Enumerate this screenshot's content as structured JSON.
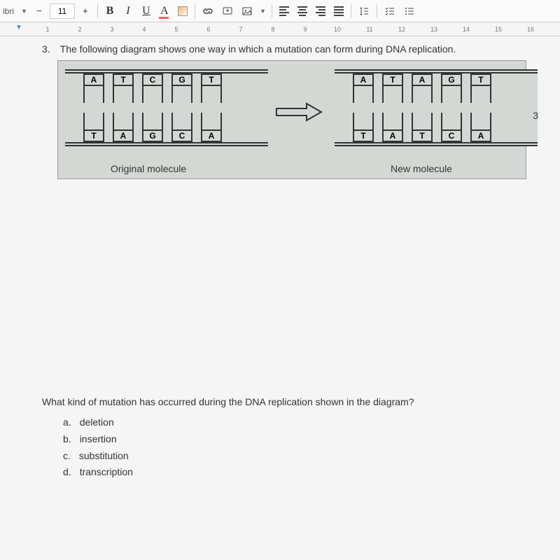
{
  "toolbar": {
    "font_hint": "ibri",
    "font_size": "11",
    "bold": "B",
    "italic": "I",
    "underline": "U",
    "font_color": "A"
  },
  "ruler": {
    "marks": [
      1,
      2,
      3,
      4,
      5,
      6,
      7,
      8,
      9,
      10,
      11,
      12,
      13,
      14,
      15,
      16
    ]
  },
  "question": {
    "number": "3.",
    "text": "The following diagram shows one way in which a mutation can form during DNA replication."
  },
  "diagram": {
    "original": {
      "top": [
        "A",
        "T",
        "C",
        "G",
        "T"
      ],
      "bottom": [
        "T",
        "A",
        "G",
        "C",
        "A"
      ],
      "label": "Original molecule"
    },
    "new": {
      "top": [
        "A",
        "T",
        "A",
        "G",
        "T"
      ],
      "bottom": [
        "T",
        "A",
        "T",
        "C",
        "A"
      ],
      "label": "New molecule"
    },
    "stroke": "#333333",
    "bg": "#d4d8d4"
  },
  "side_label": "3",
  "mc": {
    "prompt": "What kind of mutation has occurred during the DNA replication shown in the diagram?",
    "options": [
      {
        "letter": "a.",
        "text": "deletion"
      },
      {
        "letter": "b.",
        "text": "insertion"
      },
      {
        "letter": "c.",
        "text": "substitution"
      },
      {
        "letter": "d.",
        "text": "transcription"
      }
    ]
  }
}
